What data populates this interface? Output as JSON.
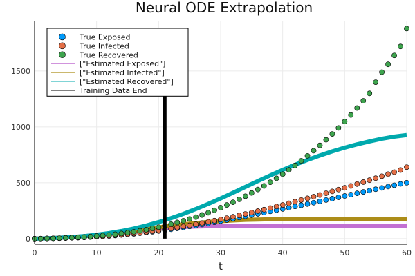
{
  "chart_data": {
    "type": "scatter",
    "title": "Neural ODE Extrapolation",
    "xlabel": "t",
    "ylabel": "",
    "xlim": [
      0,
      60
    ],
    "ylim": [
      -50,
      1950
    ],
    "xticks": [
      0,
      10,
      20,
      30,
      40,
      50,
      60
    ],
    "yticks": [
      0,
      500,
      1000,
      1500
    ],
    "grid": true,
    "legend_position": "top-left",
    "points_series": [
      {
        "name": "True Exposed",
        "color": "#009AFA",
        "x_start": 0,
        "x_step": 1,
        "values": [
          0,
          1,
          2,
          3,
          4,
          5,
          7,
          9,
          11,
          14,
          17,
          20,
          24,
          28,
          33,
          38,
          43,
          49,
          55,
          62,
          69,
          76,
          84,
          92,
          100,
          109,
          118,
          127,
          137,
          147,
          157,
          167,
          178,
          189,
          200,
          211,
          222,
          233,
          244,
          255,
          266,
          277,
          288,
          299,
          310,
          322,
          334,
          346,
          358,
          370,
          382,
          394,
          406,
          418,
          430,
          442,
          454,
          466,
          478,
          490,
          500
        ]
      },
      {
        "name": "True Infected",
        "color": "#E36F47",
        "x_start": 0,
        "x_step": 1,
        "values": [
          0,
          1,
          2,
          3,
          4,
          6,
          8,
          10,
          12,
          15,
          18,
          22,
          26,
          31,
          36,
          41,
          47,
          53,
          60,
          67,
          75,
          83,
          91,
          100,
          109,
          119,
          129,
          139,
          150,
          161,
          172,
          184,
          196,
          208,
          221,
          234,
          247,
          260,
          274,
          288,
          302,
          316,
          331,
          346,
          361,
          376,
          391,
          407,
          423,
          439,
          455,
          472,
          489,
          506,
          523,
          541,
          559,
          577,
          595,
          614,
          640
        ]
      },
      {
        "name": "True Recovered",
        "color": "#3EA44E",
        "x_start": 0,
        "x_step": 1,
        "values": [
          0,
          1,
          2,
          3,
          5,
          7,
          9,
          12,
          15,
          19,
          23,
          28,
          33,
          39,
          46,
          53,
          61,
          70,
          80,
          91,
          103,
          116,
          130,
          145,
          160,
          176,
          193,
          212,
          232,
          254,
          277,
          301,
          326,
          352,
          380,
          409,
          440,
          472,
          505,
          540,
          577,
          615,
          655,
          697,
          741,
          787,
          835,
          885,
          937,
          991,
          1048,
          1107,
          1169,
          1233,
          1300,
          1400,
          1490,
          1560,
          1640,
          1720,
          1880
        ]
      }
    ],
    "line_series": [
      {
        "name": "[\"Estimated Exposed\"]",
        "color": "#C271D2",
        "x_start": 0,
        "x_step": 2,
        "values": [
          0,
          3,
          8,
          14,
          22,
          32,
          43,
          56,
          68,
          80,
          90,
          98,
          104,
          108,
          111,
          113,
          114,
          115,
          115,
          116,
          116,
          116,
          116,
          116,
          116,
          116,
          116,
          116,
          116,
          116,
          116
        ]
      },
      {
        "name": "[\"Estimated Infected\"]",
        "color": "#AC8D18",
        "x_start": 0,
        "x_step": 2,
        "values": [
          0,
          3,
          8,
          14,
          22,
          32,
          43,
          57,
          71,
          86,
          101,
          115,
          128,
          139,
          149,
          157,
          163,
          168,
          171,
          173,
          175,
          176,
          177,
          177,
          178,
          178,
          178,
          178,
          178,
          178,
          178
        ]
      },
      {
        "name": "[\"Estimated Recovered\"]",
        "color": "#00A9AD",
        "x_start": 0,
        "x_step": 2,
        "values": [
          0,
          3,
          8,
          14,
          23,
          35,
          50,
          68,
          90,
          117,
          148,
          183,
          222,
          265,
          311,
          360,
          411,
          463,
          515,
          566,
          615,
          661,
          704,
          744,
          781,
          814,
          844,
          870,
          894,
          913,
          927
        ]
      }
    ],
    "vline": {
      "name": "Training Data End",
      "color": "#000000",
      "x": 21,
      "y_range": [
        0,
        1880
      ]
    },
    "colors": {
      "grid": "#EBEBEB",
      "axis": "#000000",
      "legend_border": "#000000"
    }
  }
}
